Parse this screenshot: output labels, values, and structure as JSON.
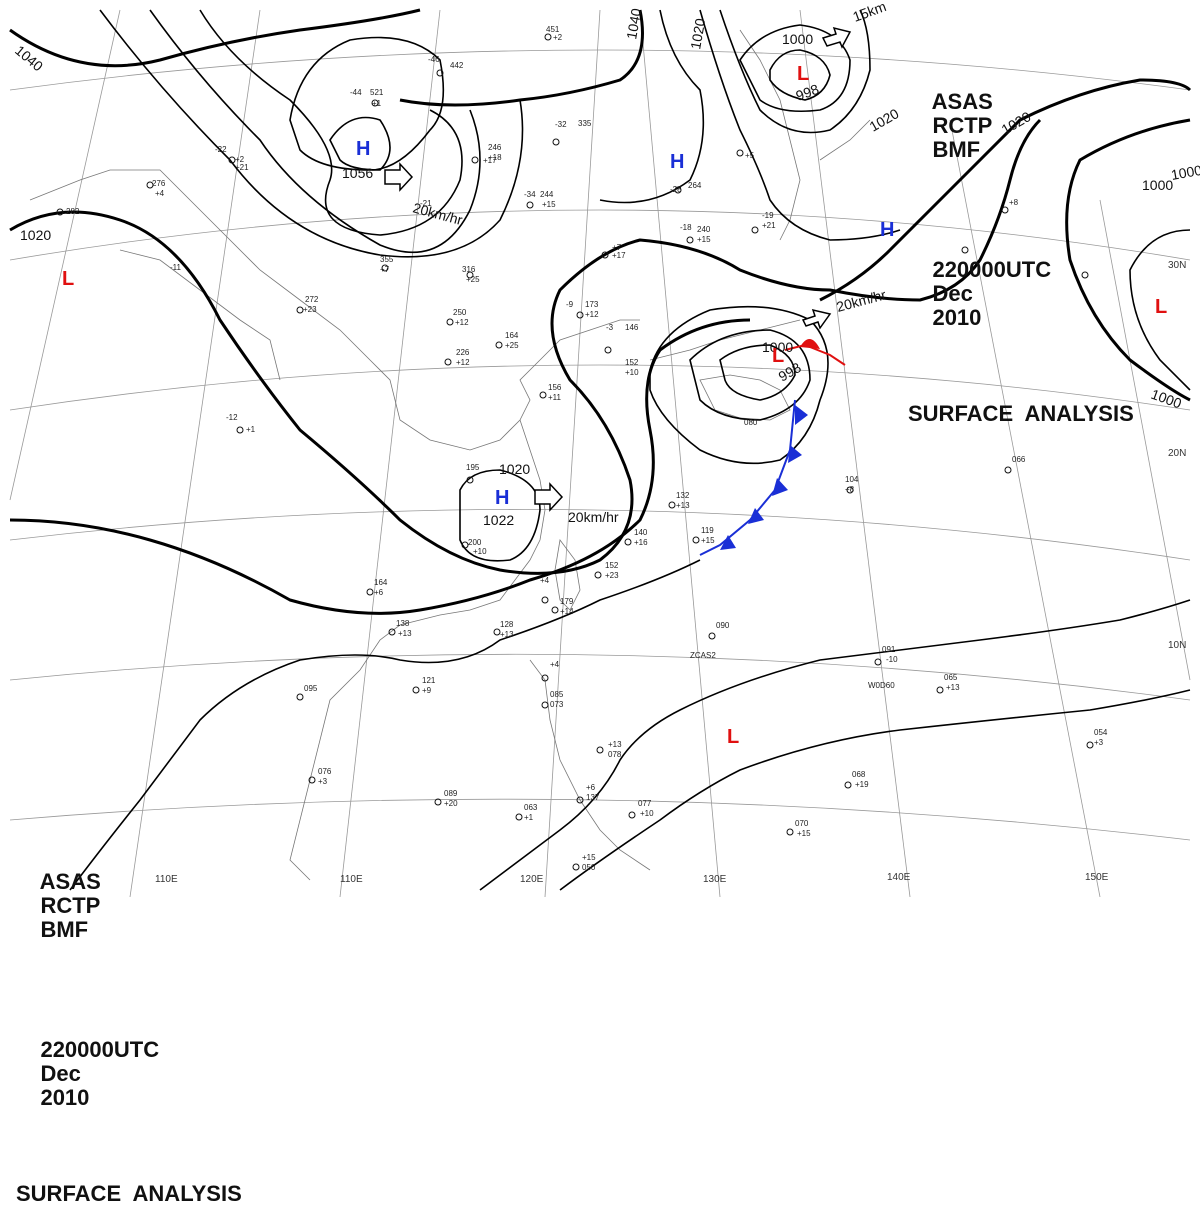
{
  "header_top_right": {
    "line1": [
      "ASAS",
      "RCTP",
      "BMF"
    ],
    "line2": [
      "220000UTC",
      "Dec",
      "2010"
    ],
    "line3": "SURFACE  ANALYSIS"
  },
  "header_bottom_left": {
    "line1": [
      "ASAS",
      "RCTP",
      "BMF"
    ],
    "line2": [
      "220000UTC",
      "Dec",
      "2010"
    ],
    "line3": "SURFACE  ANALYSIS"
  },
  "colors": {
    "high": "#1a2fd6",
    "low": "#e01010",
    "isobar": "#000000",
    "coast": "#666666",
    "grid": "#999999",
    "cold_front": "#1a2fd6",
    "warm_front": "#e01010"
  },
  "pressure_centers": [
    {
      "type": "H",
      "value": "1056"
    },
    {
      "type": "H",
      "value": ""
    },
    {
      "type": "H",
      "value": ""
    },
    {
      "type": "H",
      "value": "1022"
    },
    {
      "type": "L",
      "value": "998"
    },
    {
      "type": "L",
      "value": "998"
    },
    {
      "type": "L",
      "value": ""
    },
    {
      "type": "L",
      "value": ""
    },
    {
      "type": "L",
      "value": ""
    }
  ],
  "isobar_labels": [
    "1040",
    "1040",
    "1020",
    "1000",
    "1020",
    "1020",
    "1000",
    "1000",
    "1020",
    "1000",
    "1020",
    "1000"
  ],
  "motion_labels": [
    "20km/hr",
    "15km",
    "20km/hr",
    "20km/hr"
  ],
  "longitude_labels": [
    "110E",
    "110E",
    "120E",
    "130E",
    "140E",
    "150E"
  ],
  "latitude_labels": [
    "30N",
    "20N",
    "10N"
  ],
  "station_labels": [
    "451",
    "+2",
    "521",
    "+1",
    "442",
    "-44",
    "-46",
    "335",
    "-32",
    "+17",
    "244",
    "+15",
    "-34",
    "173",
    "+12",
    "-9",
    "146",
    "-3",
    "152",
    "+10",
    "164",
    "+25",
    "156",
    "+11",
    "195",
    "200",
    "+10",
    "+23",
    "152",
    "119",
    "+15",
    "140",
    "+16",
    "132",
    "+13",
    "128",
    "+13",
    "090",
    "ZCAS2",
    "091",
    "-10",
    "W0D60",
    "065",
    "+13",
    "104",
    "+8",
    "066",
    "054",
    "+3",
    "068",
    "+19",
    "070",
    "+15",
    "077",
    "+10",
    "063",
    "+1",
    "089",
    "+20",
    "076",
    "+3",
    "095",
    "121",
    "+9",
    "138",
    "+13",
    "164",
    "+6",
    "080",
    "-12",
    "+1",
    "272",
    "+23",
    "250",
    "+12",
    "226",
    "+12",
    "316",
    "+25",
    "355",
    "+7",
    "276",
    "-11",
    "+4",
    "246",
    "+18",
    "-21",
    "+21",
    "282",
    "+17",
    "240",
    "+15",
    "-18",
    "264",
    "-28",
    "-22",
    "+2",
    "+21",
    "-19",
    "+5",
    "+8",
    "+7",
    "+4",
    "085",
    "073",
    "+13",
    "078",
    "+6",
    "137",
    "+15",
    "050",
    "+4",
    "179",
    "+14"
  ]
}
